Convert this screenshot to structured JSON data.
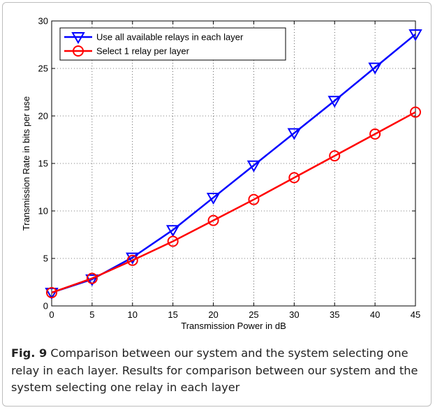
{
  "caption": {
    "label": "Fig. 9",
    "text": " Comparison between our system and the system selecting one relay in each layer. Results for comparison between our system and the system selecting one relay in each layer"
  },
  "chart_data": {
    "type": "line",
    "xlabel": "Transmission Power in dB",
    "ylabel": "Transmission Rate in bits per use",
    "xlim": [
      0,
      45
    ],
    "ylim": [
      0,
      30
    ],
    "xticks": [
      0,
      5,
      10,
      15,
      20,
      25,
      30,
      35,
      40,
      45
    ],
    "yticks": [
      0,
      5,
      10,
      15,
      20,
      25,
      30
    ],
    "grid": true,
    "legend_position": "top-left",
    "x": [
      0,
      5,
      10,
      15,
      20,
      25,
      30,
      35,
      40,
      45
    ],
    "series": [
      {
        "name": "Use all available relays in each layer",
        "color": "#0000ff",
        "marker": "triangle-down",
        "values": [
          1.4,
          2.8,
          5.1,
          8.0,
          11.4,
          14.8,
          18.2,
          21.6,
          25.1,
          28.6
        ]
      },
      {
        "name": "Select 1 relay per layer",
        "color": "#ff0000",
        "marker": "circle",
        "values": [
          1.4,
          2.9,
          4.8,
          6.8,
          9.0,
          11.2,
          13.5,
          15.8,
          18.1,
          20.4
        ]
      }
    ]
  }
}
